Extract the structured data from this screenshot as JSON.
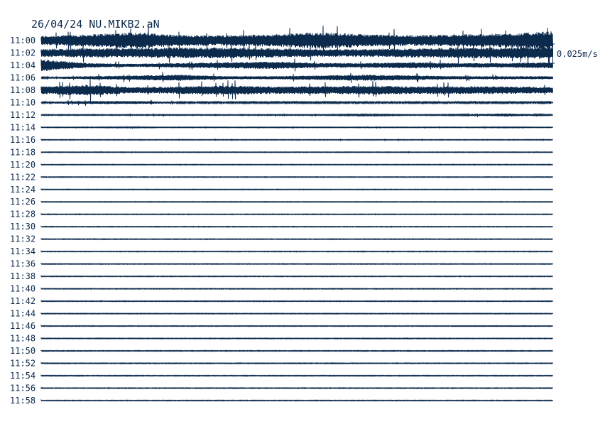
{
  "chart_data": {
    "type": "line",
    "title": "26/04/24 NU.MIKB2.aN",
    "scale_label": "0.025m/s",
    "scale_value_m_s": 0.025,
    "color": "#0b2a4c",
    "trace_minutes": 2,
    "row_labels": [
      "11:00",
      "11:02",
      "11:04",
      "11:06",
      "11:08",
      "11:10",
      "11:12",
      "11:14",
      "11:16",
      "11:18",
      "11:20",
      "11:22",
      "11:24",
      "11:26",
      "11:28",
      "11:30",
      "11:32",
      "11:34",
      "11:36",
      "11:38",
      "11:40",
      "11:42",
      "11:44",
      "11:46",
      "11:48",
      "11:50",
      "11:52",
      "11:54",
      "11:56",
      "11:58"
    ],
    "envelope_m_s": [
      [
        0.006,
        0.008,
        0.011,
        0.007,
        0.007,
        0.008,
        0.011,
        0.008,
        0.007,
        0.008,
        0.009,
        0.012
      ],
      [
        0.005,
        0.006,
        0.006,
        0.007,
        0.007,
        0.006,
        0.005,
        0.005,
        0.006,
        0.007,
        0.007,
        0.008
      ],
      [
        0.008,
        0.003,
        0.002,
        0.003,
        0.004,
        0.005,
        0.003,
        0.003,
        0.004,
        0.003,
        0.003,
        0.004
      ],
      [
        0.001,
        0.002,
        0.003,
        0.004,
        0.002,
        0.002,
        0.003,
        0.004,
        0.003,
        0.002,
        0.002,
        0.002
      ],
      [
        0.005,
        0.007,
        0.004,
        0.005,
        0.006,
        0.005,
        0.005,
        0.006,
        0.005,
        0.005,
        0.005,
        0.004
      ],
      [
        0.001,
        0.002,
        0.002,
        0.001,
        0.001,
        0.001,
        0.001,
        0.001,
        0.001,
        0.001,
        0.001,
        0.001
      ],
      [
        0.0006,
        0.0006,
        0.0006,
        0.0006,
        0.0006,
        0.0006,
        0.0006,
        0.001,
        0.0006,
        0.0008,
        0.002,
        0.0006
      ],
      [
        0.0004,
        0.0005,
        0.0006,
        0.0004,
        0.0004,
        0.0005,
        0.0004,
        0.0004,
        0.0004,
        0.0004,
        0.0006,
        0.0004
      ],
      [
        0.0003,
        0.0004,
        0.0003,
        0.0003,
        0.0004,
        0.0003,
        0.0003,
        0.0004,
        0.0003,
        0.0003,
        0.0003,
        0.0003
      ],
      [
        0.0002,
        0.0002,
        0.0002,
        0.0002,
        0.0002,
        0.0002,
        0.0002,
        0.0002,
        0.0004,
        0.0002,
        0.0002,
        0.0002
      ],
      [
        0.0001,
        0.0001,
        0.0001,
        0.0001,
        0.0001,
        0.0001,
        0.0001,
        0.0001,
        0.0001,
        0.0001,
        0.0001,
        0.0001
      ],
      [
        0.0001,
        0.0001,
        0.0001,
        0.0001,
        0.0001,
        0.0001,
        0.0001,
        0.0001,
        0.0001,
        0.0001,
        0.0001,
        0.0001
      ],
      [
        0.0001,
        0.0001,
        0.0001,
        0.0001,
        0.0001,
        0.0001,
        0.0001,
        0.0001,
        0.0001,
        0.0001,
        0.0001,
        0.0001
      ],
      [
        0.0001,
        0.0001,
        0.0001,
        0.0001,
        0.0003,
        0.0001,
        0.0001,
        0.0001,
        0.0001,
        0.0001,
        0.0001,
        0.0002
      ],
      [
        0.0001,
        0.0001,
        0.0001,
        0.0001,
        0.0001,
        0.0001,
        0.0001,
        0.0001,
        0.0001,
        0.0001,
        0.0001,
        0.0001
      ],
      [
        0.0003,
        0.0002,
        0.0002,
        0.0003,
        0.0002,
        0.0002,
        0.0002,
        0.0002,
        0.0003,
        0.0002,
        0.0002,
        0.0002
      ],
      [
        0.0001,
        0.0001,
        0.0001,
        0.0001,
        0.0001,
        0.0001,
        0.0001,
        0.0001,
        0.0001,
        0.0001,
        0.0001,
        0.0001
      ],
      [
        0.0003,
        0.0003,
        0.0003,
        0.0003,
        0.0003,
        0.0003,
        0.0003,
        0.0003,
        0.0003,
        0.0003,
        0.0003,
        0.0003
      ],
      [
        0.0001,
        0.0001,
        0.0001,
        0.0001,
        0.0001,
        0.0001,
        0.0001,
        0.0001,
        0.0001,
        0.0001,
        0.0001,
        0.0001
      ],
      [
        0.0003,
        0.0001,
        0.0001,
        0.0001,
        0.0001,
        0.0001,
        0.0001,
        0.0001,
        0.0001,
        0.0001,
        0.0001,
        0.0001
      ],
      [
        0.0001,
        0.0001,
        0.0001,
        0.0001,
        0.0001,
        0.0001,
        0.0001,
        0.0001,
        0.0001,
        0.0001,
        0.0001,
        0.0001
      ],
      [
        0.0001,
        0.0001,
        0.0001,
        0.0001,
        0.0001,
        0.0001,
        0.0001,
        0.0001,
        0.0001,
        0.0001,
        0.0001,
        0.0001
      ],
      [
        0.0001,
        0.0001,
        0.0001,
        0.0001,
        0.0001,
        0.0001,
        0.0001,
        0.0001,
        0.0001,
        0.0001,
        0.0001,
        0.0001
      ],
      [
        0.0001,
        0.0001,
        0.0001,
        0.0001,
        0.0001,
        0.0001,
        0.0001,
        0.0001,
        0.0001,
        0.0001,
        0.0001,
        0.0001
      ],
      [
        0.0001,
        0.0001,
        0.0001,
        0.0001,
        0.0001,
        0.0001,
        0.0001,
        0.0001,
        0.0001,
        0.0001,
        0.0001,
        0.0001
      ],
      [
        0.0001,
        0.0001,
        0.0001,
        0.0001,
        0.0001,
        0.0001,
        0.0001,
        0.0001,
        0.0001,
        0.0001,
        0.0001,
        0.0001
      ],
      [
        0.0001,
        0.0001,
        0.0001,
        0.0001,
        0.0001,
        0.0001,
        0.0001,
        0.0001,
        0.0001,
        0.0001,
        0.0001,
        0.0001
      ],
      [
        0.0001,
        0.0001,
        0.0001,
        0.0001,
        0.0001,
        0.0001,
        0.0001,
        0.0001,
        0.0003,
        0.0001,
        0.0001,
        0.0001
      ],
      [
        0.0002,
        0.0003,
        0.0002,
        0.0002,
        0.0002,
        0.0002,
        0.0002,
        0.0002,
        0.0002,
        0.0002,
        0.0002,
        0.0003
      ],
      [
        0.0001,
        0.0001,
        0.0001,
        0.0001,
        0.0001,
        0.0001,
        0.0001,
        0.0001,
        0.0001,
        0.0001,
        0.0001,
        0.0003
      ]
    ]
  }
}
